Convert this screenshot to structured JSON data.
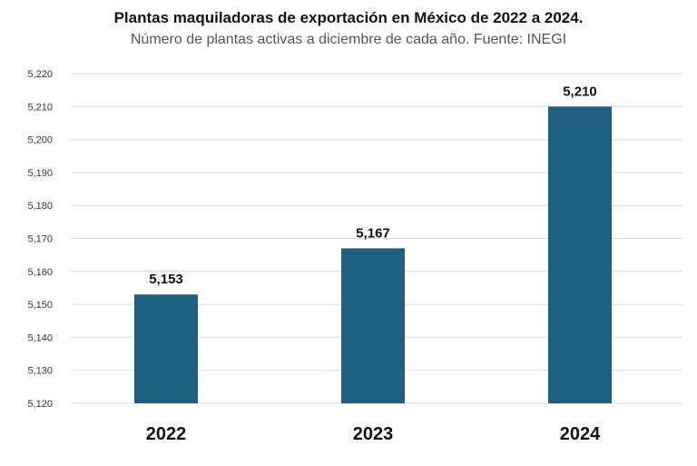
{
  "chart_data": {
    "type": "bar",
    "title": "Plantas maquiladoras  de exportación en México de 2022 a 2024.",
    "subtitle": "Número de plantas activas  a diciembre de cada año. Fuente: INEGI",
    "categories": [
      "2022",
      "2023",
      "2024"
    ],
    "values": [
      5153,
      5167,
      5210
    ],
    "data_labels": [
      "5,153",
      "5,167",
      "5,210"
    ],
    "ylim": [
      5120,
      5220
    ],
    "yticks": [
      5120,
      5130,
      5140,
      5150,
      5160,
      5170,
      5180,
      5190,
      5200,
      5210,
      5220
    ],
    "ytick_labels": [
      "5,120",
      "5,130",
      "5,140",
      "5,150",
      "5,160",
      "5,170",
      "5,180",
      "5,190",
      "5,200",
      "5,210",
      "5,220"
    ],
    "grid": true,
    "legend": "none",
    "bar_color": "#1f5f80",
    "grid_color": "#d9d9d9"
  }
}
